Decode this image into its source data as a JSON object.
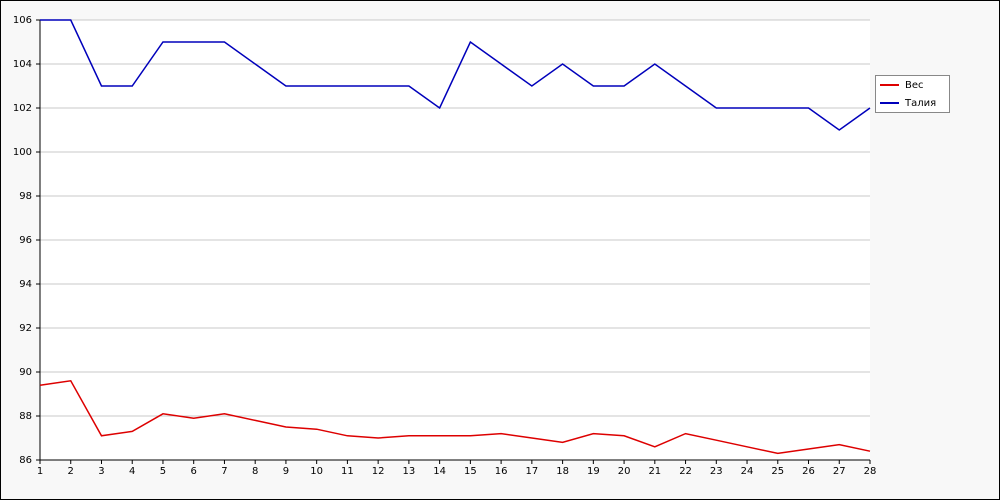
{
  "chart_data": {
    "type": "line",
    "x": [
      1,
      2,
      3,
      4,
      5,
      6,
      7,
      8,
      9,
      10,
      11,
      12,
      13,
      14,
      15,
      16,
      17,
      18,
      19,
      20,
      21,
      22,
      23,
      24,
      25,
      26,
      27,
      28
    ],
    "series": [
      {
        "name": "Вес",
        "color": "#dd0000",
        "values": [
          89.4,
          89.6,
          87.1,
          87.3,
          88.1,
          87.9,
          88.1,
          87.8,
          87.5,
          87.4,
          87.1,
          87.0,
          87.1,
          87.1,
          87.1,
          87.2,
          87.0,
          86.8,
          87.2,
          87.1,
          86.6,
          87.2,
          86.9,
          86.6,
          86.3,
          86.5,
          86.7,
          86.4
        ]
      },
      {
        "name": "Талия",
        "color": "#0000bb",
        "values": [
          106,
          106,
          103,
          103,
          105,
          105,
          105,
          104,
          103,
          103,
          103,
          103,
          103,
          102,
          105,
          104,
          103,
          104,
          103,
          103,
          104,
          103,
          102,
          102,
          102,
          102,
          101,
          102
        ]
      }
    ],
    "xlim": [
      1,
      28
    ],
    "xticks": [
      1,
      2,
      3,
      4,
      5,
      6,
      7,
      8,
      9,
      10,
      11,
      12,
      13,
      14,
      15,
      16,
      17,
      18,
      19,
      20,
      21,
      22,
      23,
      24,
      25,
      26,
      27,
      28
    ],
    "ylim": [
      86,
      106
    ],
    "yticks": [
      86,
      88,
      90,
      92,
      94,
      96,
      98,
      100,
      102,
      104,
      106
    ],
    "grid": true,
    "legend": "right"
  }
}
